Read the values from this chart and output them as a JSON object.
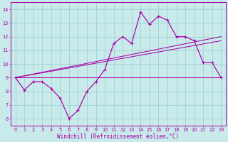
{
  "title": "",
  "xlabel": "Windchill (Refroidissement éolien,°C)",
  "ylabel": "",
  "background_color": "#c8eaea",
  "plot_bg_color": "#c8eaea",
  "line_color": "#aa00aa",
  "grid_color": "#99cccc",
  "xlim": [
    -0.5,
    23.5
  ],
  "ylim": [
    5.5,
    14.5
  ],
  "yticks": [
    6,
    7,
    8,
    9,
    10,
    11,
    12,
    13,
    14
  ],
  "xticks": [
    0,
    1,
    2,
    3,
    4,
    5,
    6,
    7,
    8,
    9,
    10,
    11,
    12,
    13,
    14,
    15,
    16,
    17,
    18,
    19,
    20,
    21,
    22,
    23
  ],
  "main_data": [
    [
      0,
      9.0
    ],
    [
      1,
      8.1
    ],
    [
      2,
      8.7
    ],
    [
      3,
      8.7
    ],
    [
      4,
      8.2
    ],
    [
      5,
      7.5
    ],
    [
      6,
      6.0
    ],
    [
      7,
      6.6
    ],
    [
      8,
      8.0
    ],
    [
      9,
      8.7
    ],
    [
      10,
      9.6
    ],
    [
      11,
      11.5
    ],
    [
      12,
      12.0
    ],
    [
      13,
      11.5
    ],
    [
      14,
      13.8
    ],
    [
      15,
      12.9
    ],
    [
      16,
      13.5
    ],
    [
      17,
      13.2
    ],
    [
      18,
      12.0
    ],
    [
      19,
      12.0
    ],
    [
      20,
      11.7
    ],
    [
      21,
      10.1
    ],
    [
      22,
      10.1
    ],
    [
      23,
      9.0
    ]
  ],
  "ref_lines": [
    [
      [
        0,
        9.0
      ],
      [
        23,
        9.0
      ]
    ],
    [
      [
        0,
        9.0
      ],
      [
        23,
        12.0
      ]
    ],
    [
      [
        0,
        9.0
      ],
      [
        23,
        11.7
      ]
    ]
  ]
}
